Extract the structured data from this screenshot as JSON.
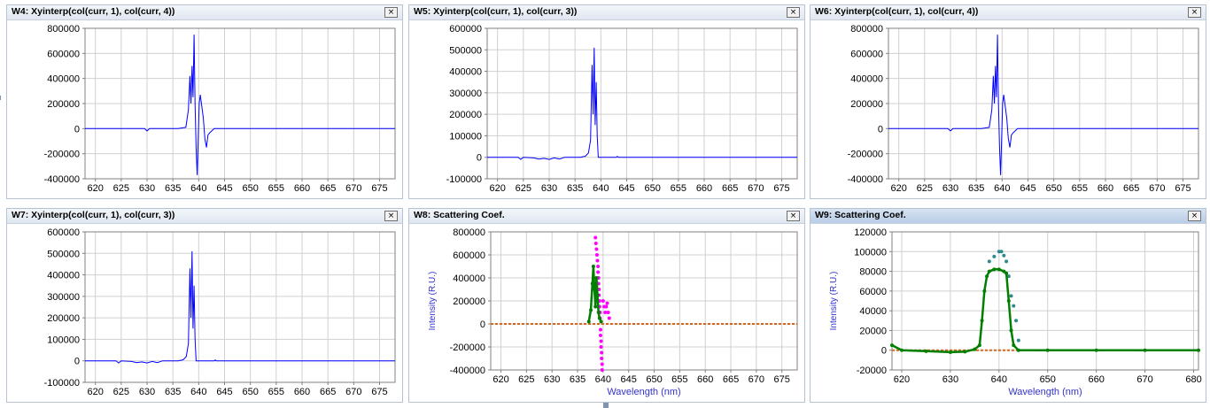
{
  "panels": [
    {
      "id": "w4",
      "title": "W4: Xyinterp(col(curr, 1), col(curr, 4))",
      "active": false
    },
    {
      "id": "w5",
      "title": "W5: Xyinterp(col(curr, 1), col(curr, 3))",
      "active": false
    },
    {
      "id": "w6",
      "title": "W6: Xyinterp(col(curr, 1), col(curr, 4))",
      "active": false
    },
    {
      "id": "w7",
      "title": "W7: Xyinterp(col(curr, 1), col(curr, 3))",
      "active": false
    },
    {
      "id": "w8",
      "title": "W8: Scattering Coef.",
      "active": false
    },
    {
      "id": "w9",
      "title": "W9: Scattering Coef.",
      "active": true
    }
  ],
  "close_glyph": "×",
  "colors": {
    "blue_trace": "#0000ff",
    "magenta": "#ff00ff",
    "green": "#007f00",
    "teal": "#2e8b8b",
    "orange": "#d2691e",
    "label_blue": "#3333cc",
    "grid": "#d0d0d0"
  },
  "chart_data": [
    {
      "type": "line",
      "title": "W4: Xyinterp(col(curr, 1), col(curr, 4))",
      "xlabel": "",
      "ylabel": "",
      "xlim": [
        618,
        678
      ],
      "ylim": [
        -400000,
        800000
      ],
      "xticks": [
        620,
        625,
        630,
        635,
        640,
        645,
        650,
        655,
        660,
        665,
        670,
        675
      ],
      "yticks": [
        -400000,
        -200000,
        0,
        200000,
        400000,
        600000,
        800000
      ],
      "series": [
        {
          "values": [
            [
              618,
              0
            ],
            [
              624,
              0
            ],
            [
              629.5,
              0
            ],
            [
              630,
              -18000
            ],
            [
              630.5,
              0
            ],
            [
              636,
              0
            ],
            [
              637.5,
              10000
            ],
            [
              638,
              150000
            ],
            [
              638.3,
              420000
            ],
            [
              638.5,
              200000
            ],
            [
              638.7,
              500000
            ],
            [
              638.9,
              250000
            ],
            [
              639.1,
              750000
            ],
            [
              639.3,
              200000
            ],
            [
              639.5,
              -150000
            ],
            [
              639.7,
              -370000
            ],
            [
              639.9,
              -100000
            ],
            [
              640.1,
              200000
            ],
            [
              640.3,
              270000
            ],
            [
              640.6,
              180000
            ],
            [
              640.9,
              80000
            ],
            [
              641.2,
              -80000
            ],
            [
              641.5,
              -150000
            ],
            [
              641.8,
              -50000
            ],
            [
              642.2,
              -30000
            ],
            [
              643,
              0
            ],
            [
              678,
              0
            ]
          ]
        }
      ]
    },
    {
      "type": "line",
      "title": "W5: Xyinterp(col(curr, 1), col(curr, 3))",
      "xlabel": "",
      "ylabel": "",
      "xlim": [
        618,
        678
      ],
      "ylim": [
        -100000,
        600000
      ],
      "xticks": [
        620,
        625,
        630,
        635,
        640,
        645,
        650,
        655,
        660,
        665,
        670,
        675
      ],
      "yticks": [
        -100000,
        0,
        100000,
        200000,
        300000,
        400000,
        500000,
        600000
      ],
      "series": [
        {
          "values": [
            [
              618,
              0
            ],
            [
              624,
              0
            ],
            [
              624.5,
              -10000
            ],
            [
              625,
              0
            ],
            [
              627,
              -3000
            ],
            [
              628,
              -8000
            ],
            [
              629,
              -5000
            ],
            [
              630,
              -10000
            ],
            [
              631,
              -3000
            ],
            [
              632,
              -8000
            ],
            [
              633,
              0
            ],
            [
              636,
              0
            ],
            [
              637,
              5000
            ],
            [
              637.6,
              20000
            ],
            [
              638,
              80000
            ],
            [
              638.3,
              430000
            ],
            [
              638.5,
              200000
            ],
            [
              638.7,
              510000
            ],
            [
              638.9,
              150000
            ],
            [
              639.1,
              350000
            ],
            [
              639.3,
              100000
            ],
            [
              639.5,
              0
            ],
            [
              643,
              0
            ],
            [
              643.2,
              4000
            ],
            [
              643.4,
              0
            ],
            [
              678,
              0
            ]
          ]
        }
      ]
    },
    {
      "type": "line",
      "title": "W6: Xyinterp(col(curr, 1), col(curr, 4))",
      "xlabel": "",
      "ylabel": "",
      "xlim": [
        618,
        678
      ],
      "ylim": [
        -400000,
        800000
      ],
      "xticks": [
        620,
        625,
        630,
        635,
        640,
        645,
        650,
        655,
        660,
        665,
        670,
        675
      ],
      "yticks": [
        -400000,
        -200000,
        0,
        200000,
        400000,
        600000,
        800000
      ],
      "series": [
        {
          "values": [
            [
              618,
              0
            ],
            [
              624,
              0
            ],
            [
              629.5,
              0
            ],
            [
              630,
              -18000
            ],
            [
              630.5,
              0
            ],
            [
              636,
              0
            ],
            [
              637.5,
              10000
            ],
            [
              638,
              150000
            ],
            [
              638.3,
              420000
            ],
            [
              638.5,
              200000
            ],
            [
              638.7,
              500000
            ],
            [
              638.9,
              250000
            ],
            [
              639.1,
              750000
            ],
            [
              639.3,
              200000
            ],
            [
              639.5,
              -150000
            ],
            [
              639.7,
              -370000
            ],
            [
              639.9,
              -100000
            ],
            [
              640.1,
              200000
            ],
            [
              640.3,
              270000
            ],
            [
              640.6,
              180000
            ],
            [
              640.9,
              80000
            ],
            [
              641.2,
              -80000
            ],
            [
              641.5,
              -150000
            ],
            [
              641.8,
              -50000
            ],
            [
              642.2,
              -30000
            ],
            [
              643,
              0
            ],
            [
              678,
              0
            ]
          ]
        }
      ]
    },
    {
      "type": "line",
      "title": "W7: Xyinterp(col(curr, 1), col(curr, 3))",
      "xlabel": "",
      "ylabel": "",
      "xlim": [
        618,
        678
      ],
      "ylim": [
        -100000,
        600000
      ],
      "xticks": [
        620,
        625,
        630,
        635,
        640,
        645,
        650,
        655,
        660,
        665,
        670,
        675
      ],
      "yticks": [
        -100000,
        0,
        100000,
        200000,
        300000,
        400000,
        500000,
        600000
      ],
      "series": [
        {
          "values": [
            [
              618,
              0
            ],
            [
              624,
              0
            ],
            [
              624.5,
              -10000
            ],
            [
              625,
              0
            ],
            [
              627,
              -3000
            ],
            [
              628,
              -8000
            ],
            [
              629,
              -5000
            ],
            [
              630,
              -10000
            ],
            [
              631,
              -3000
            ],
            [
              632,
              -8000
            ],
            [
              633,
              0
            ],
            [
              636,
              0
            ],
            [
              637,
              5000
            ],
            [
              637.6,
              20000
            ],
            [
              638,
              80000
            ],
            [
              638.3,
              430000
            ],
            [
              638.5,
              200000
            ],
            [
              638.7,
              510000
            ],
            [
              638.9,
              150000
            ],
            [
              639.1,
              350000
            ],
            [
              639.3,
              100000
            ],
            [
              639.5,
              0
            ],
            [
              643,
              0
            ],
            [
              643.2,
              4000
            ],
            [
              643.4,
              0
            ],
            [
              678,
              0
            ]
          ]
        }
      ]
    },
    {
      "type": "scatter",
      "title": "W8: Scattering Coef.",
      "xlabel": "Wavelength (nm)",
      "ylabel": "Intensity (R.U.)",
      "xlim": [
        618,
        678
      ],
      "ylim": [
        -400000,
        800000
      ],
      "xticks": [
        620,
        625,
        630,
        635,
        640,
        645,
        650,
        655,
        660,
        665,
        670,
        675
      ],
      "yticks": [
        -400000,
        -200000,
        0,
        200000,
        400000,
        600000,
        800000
      ],
      "series": [
        {
          "color": "#ff00ff",
          "values": [
            [
              638.5,
              750000
            ],
            [
              638.6,
              700000
            ],
            [
              638.7,
              650000
            ],
            [
              638.8,
              600000
            ],
            [
              638.9,
              550000
            ],
            [
              639.0,
              500000
            ],
            [
              639.0,
              450000
            ],
            [
              639.1,
              400000
            ],
            [
              639.1,
              350000
            ],
            [
              639.2,
              300000
            ],
            [
              639.2,
              250000
            ],
            [
              639.3,
              200000
            ],
            [
              639.3,
              150000
            ],
            [
              639.4,
              100000
            ],
            [
              639.4,
              50000
            ],
            [
              639.5,
              -50000
            ],
            [
              639.5,
              -100000
            ],
            [
              639.6,
              -150000
            ],
            [
              639.6,
              -200000
            ],
            [
              639.7,
              -250000
            ],
            [
              639.7,
              -300000
            ],
            [
              639.8,
              -350000
            ],
            [
              639.8,
              -400000
            ],
            [
              640.0,
              200000
            ],
            [
              640.2,
              150000
            ],
            [
              640.4,
              100000
            ],
            [
              640.6,
              150000
            ],
            [
              640.8,
              180000
            ],
            [
              641.0,
              100000
            ],
            [
              641.2,
              50000
            ]
          ]
        },
        {
          "color": "#007f00",
          "values": [
            [
              637.2,
              20000
            ],
            [
              637.6,
              120000
            ],
            [
              637.9,
              350000
            ],
            [
              638.1,
              500000
            ],
            [
              638.3,
              300000
            ],
            [
              638.5,
              150000
            ],
            [
              638.7,
              400000
            ],
            [
              638.9,
              250000
            ],
            [
              639.1,
              100000
            ],
            [
              639.3,
              50000
            ],
            [
              639.6,
              20000
            ]
          ]
        }
      ]
    },
    {
      "type": "scatter",
      "title": "W9: Scattering Coef.",
      "xlabel": "Wavelength (nm)",
      "ylabel": "Intensity (R.U.)",
      "xlim": [
        618,
        681
      ],
      "ylim": [
        -20000,
        120000
      ],
      "xticks": [
        620,
        630,
        640,
        650,
        660,
        670,
        680
      ],
      "yticks": [
        -20000,
        0,
        20000,
        40000,
        60000,
        80000,
        100000,
        120000
      ],
      "series": [
        {
          "color": "#2e8b8b",
          "values": [
            [
              638,
              90000
            ],
            [
              639,
              95000
            ],
            [
              640,
              100000
            ],
            [
              640.5,
              100000
            ],
            [
              641,
              96000
            ],
            [
              641.5,
              90000
            ],
            [
              642,
              75000
            ],
            [
              642.5,
              55000
            ],
            [
              643,
              45000
            ],
            [
              643.5,
              30000
            ],
            [
              644,
              10000
            ]
          ]
        },
        {
          "color": "#007f00",
          "values": [
            [
              618,
              5000
            ],
            [
              620,
              0
            ],
            [
              625,
              -1000
            ],
            [
              630,
              -2000
            ],
            [
              633,
              -1500
            ],
            [
              635,
              1000
            ],
            [
              636,
              5000
            ],
            [
              636.5,
              30000
            ],
            [
              637,
              60000
            ],
            [
              637.5,
              75000
            ],
            [
              638,
              80000
            ],
            [
              639,
              82000
            ],
            [
              640,
              82000
            ],
            [
              641,
              80000
            ],
            [
              641.5,
              78000
            ],
            [
              642,
              50000
            ],
            [
              642.5,
              20000
            ],
            [
              643,
              5000
            ],
            [
              644,
              0
            ],
            [
              650,
              0
            ],
            [
              660,
              0
            ],
            [
              670,
              0
            ],
            [
              681,
              0
            ]
          ]
        }
      ]
    }
  ]
}
